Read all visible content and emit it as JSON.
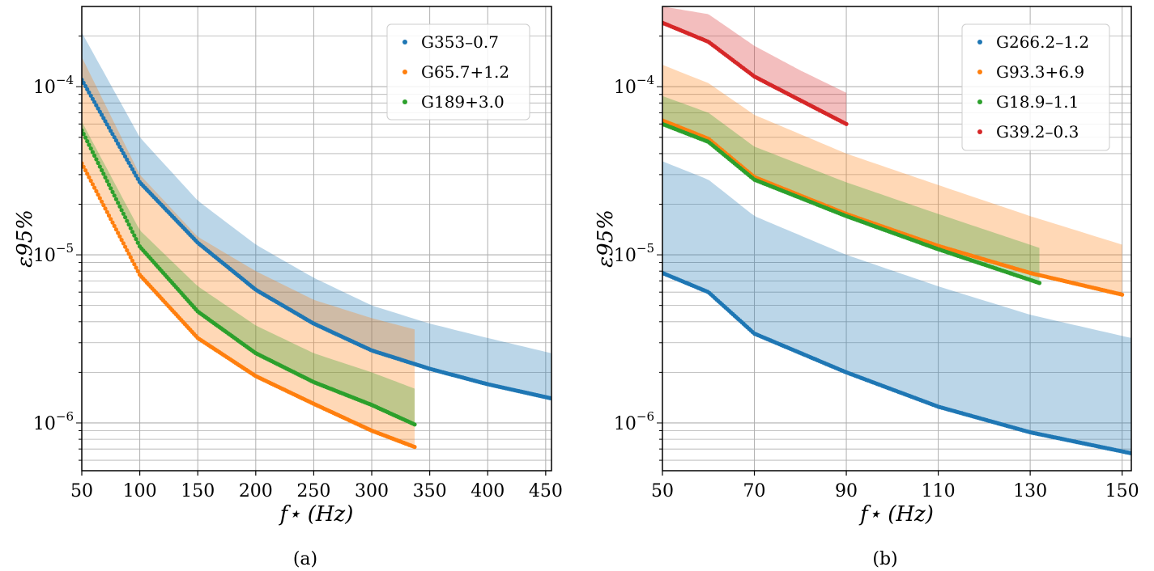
{
  "chart_data": [
    {
      "type": "scatter",
      "panel_label": "(a)",
      "xlabel": "f⋆ (Hz)",
      "ylabel": "ε95%",
      "yscale": "log",
      "xlim": [
        50,
        455
      ],
      "ylim": [
        5.2e-07,
        0.0003
      ],
      "xticks": [
        50,
        100,
        150,
        200,
        250,
        300,
        350,
        400,
        450
      ],
      "xtick_labels": [
        "50",
        "100",
        "150",
        "200",
        "250",
        "300",
        "350",
        "400",
        "450"
      ],
      "ytick_labels": [
        {
          "base": "10",
          "exp": "−4",
          "value": 0.0001
        },
        {
          "base": "10",
          "exp": "−5",
          "value": 1e-05
        },
        {
          "base": "10",
          "exp": "−6",
          "value": 1e-06
        }
      ],
      "grid": true,
      "legend_position": "top-right",
      "series": [
        {
          "name": "G353–0.7",
          "color": "#1f77b4",
          "f_start": 50,
          "f_end": 455,
          "points_at": [
            [
              50,
              0.00011
            ],
            [
              100,
              2.7e-05
            ],
            [
              150,
              1.18e-05
            ],
            [
              200,
              6.2e-06
            ],
            [
              250,
              3.9e-06
            ],
            [
              300,
              2.7e-06
            ],
            [
              350,
              2.1e-06
            ],
            [
              400,
              1.7e-06
            ],
            [
              455,
              1.4e-06
            ]
          ],
          "band_upper_at": [
            [
              50,
              0.00021
            ],
            [
              100,
              5e-05
            ],
            [
              150,
              2.1e-05
            ],
            [
              200,
              1.15e-05
            ],
            [
              250,
              7.3e-06
            ],
            [
              300,
              5e-06
            ],
            [
              350,
              3.9e-06
            ],
            [
              400,
              3.2e-06
            ],
            [
              455,
              2.6e-06
            ]
          ]
        },
        {
          "name": "G65.7+1.2",
          "color": "#ff7f0e",
          "f_start": 50,
          "f_end": 337,
          "points_at": [
            [
              50,
              3.5e-05
            ],
            [
              100,
              7.6e-06
            ],
            [
              150,
              3.2e-06
            ],
            [
              200,
              1.9e-06
            ],
            [
              250,
              1.3e-06
            ],
            [
              300,
              9e-07
            ],
            [
              337,
              7.2e-07
            ]
          ],
          "band_upper_at": [
            [
              50,
              0.00015
            ],
            [
              100,
              3e-05
            ],
            [
              150,
              1.28e-05
            ],
            [
              200,
              8e-06
            ],
            [
              250,
              5.4e-06
            ],
            [
              300,
              4.2e-06
            ],
            [
              337,
              3.6e-06
            ]
          ]
        },
        {
          "name": "G189+3.0",
          "color": "#2ca02c",
          "f_start": 50,
          "f_end": 337,
          "points_at": [
            [
              50,
              5.5e-05
            ],
            [
              100,
              1.12e-05
            ],
            [
              150,
              4.6e-06
            ],
            [
              200,
              2.6e-06
            ],
            [
              250,
              1.75e-06
            ],
            [
              300,
              1.28e-06
            ],
            [
              337,
              9.8e-07
            ]
          ],
          "band_upper_at": [
            [
              50,
              6.2e-05
            ],
            [
              100,
              1.4e-05
            ],
            [
              150,
              6.5e-06
            ],
            [
              200,
              3.8e-06
            ],
            [
              250,
              2.6e-06
            ],
            [
              300,
              2e-06
            ],
            [
              337,
              1.6e-06
            ]
          ]
        }
      ]
    },
    {
      "type": "scatter",
      "panel_label": "(b)",
      "xlabel": "f⋆ (Hz)",
      "ylabel": "ε95%",
      "yscale": "log",
      "xlim": [
        50,
        152
      ],
      "ylim": [
        5.2e-07,
        0.0003
      ],
      "xticks": [
        50,
        70,
        90,
        110,
        130,
        150
      ],
      "xtick_labels": [
        "50",
        "70",
        "90",
        "110",
        "130",
        "150"
      ],
      "ytick_labels": [
        {
          "base": "10",
          "exp": "−4",
          "value": 0.0001
        },
        {
          "base": "10",
          "exp": "−5",
          "value": 1e-05
        },
        {
          "base": "10",
          "exp": "−6",
          "value": 1e-06
        }
      ],
      "grid": true,
      "legend_position": "top-right",
      "series": [
        {
          "name": "G266.2–1.2",
          "color": "#1f77b4",
          "f_start": 50,
          "f_end": 152,
          "points_at": [
            [
              50,
              7.8e-06
            ],
            [
              60,
              6e-06
            ],
            [
              70,
              3.4e-06
            ],
            [
              90,
              2e-06
            ],
            [
              110,
              1.25e-06
            ],
            [
              130,
              8.8e-07
            ],
            [
              152,
              6.6e-07
            ]
          ],
          "band_upper_at": [
            [
              50,
              3.6e-05
            ],
            [
              60,
              2.8e-05
            ],
            [
              70,
              1.7e-05
            ],
            [
              90,
              1e-05
            ],
            [
              110,
              6.5e-06
            ],
            [
              130,
              4.4e-06
            ],
            [
              152,
              3.2e-06
            ]
          ]
        },
        {
          "name": "G93.3+6.9",
          "color": "#ff7f0e",
          "f_start": 50,
          "f_end": 150,
          "points_at": [
            [
              50,
              6.3e-05
            ],
            [
              60,
              4.9e-05
            ],
            [
              70,
              2.9e-05
            ],
            [
              90,
              1.75e-05
            ],
            [
              110,
              1.13e-05
            ],
            [
              130,
              7.8e-06
            ],
            [
              150,
              5.8e-06
            ]
          ],
          "band_upper_at": [
            [
              50,
              0.000135
            ],
            [
              60,
              0.000105
            ],
            [
              70,
              6.8e-05
            ],
            [
              90,
              4e-05
            ],
            [
              110,
              2.6e-05
            ],
            [
              130,
              1.7e-05
            ],
            [
              150,
              1.15e-05
            ]
          ]
        },
        {
          "name": "G18.9–1.1",
          "color": "#2ca02c",
          "f_start": 50,
          "f_end": 132,
          "points_at": [
            [
              50,
              6e-05
            ],
            [
              60,
              4.7e-05
            ],
            [
              70,
              2.8e-05
            ],
            [
              90,
              1.7e-05
            ],
            [
              110,
              1.08e-05
            ],
            [
              132,
              6.8e-06
            ]
          ],
          "band_upper_at": [
            [
              50,
              8.8e-05
            ],
            [
              60,
              7e-05
            ],
            [
              70,
              4.4e-05
            ],
            [
              90,
              2.7e-05
            ],
            [
              110,
              1.75e-05
            ],
            [
              132,
              1.1e-05
            ]
          ]
        },
        {
          "name": "G39.2–0.3",
          "color": "#d62728",
          "f_start": 50,
          "f_end": 90,
          "points_at": [
            [
              50,
              0.00024
            ],
            [
              60,
              0.000185
            ],
            [
              70,
              0.000115
            ],
            [
              80,
              8.3e-05
            ],
            [
              90,
              6e-05
            ]
          ],
          "band_upper_at": [
            [
              50,
              0.0003
            ],
            [
              60,
              0.00027
            ],
            [
              70,
              0.000175
            ],
            [
              80,
              0.000125
            ],
            [
              90,
              9.2e-05
            ]
          ]
        }
      ]
    }
  ]
}
